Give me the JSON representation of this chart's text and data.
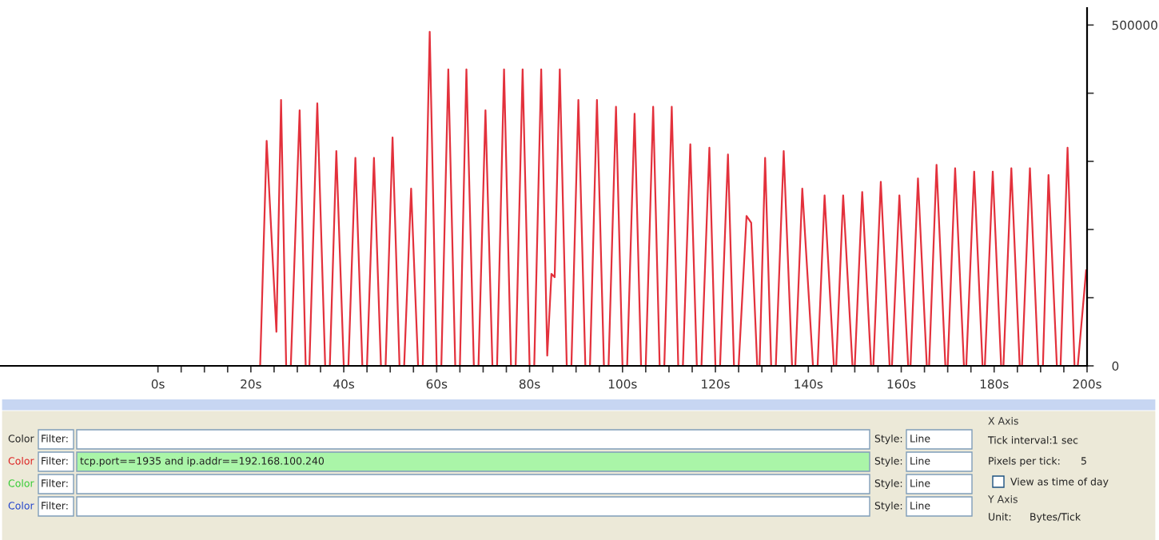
{
  "chart_data": {
    "type": "line",
    "xlim": [
      -34,
      200
    ],
    "ylim": [
      0,
      525000
    ],
    "xticks": [
      {
        "value": 0,
        "label": "0s"
      },
      {
        "value": 5,
        "label": null
      },
      {
        "value": 10,
        "label": null
      },
      {
        "value": 15,
        "label": null
      },
      {
        "value": 20,
        "label": "20s"
      },
      {
        "value": 25,
        "label": null
      },
      {
        "value": 30,
        "label": null
      },
      {
        "value": 35,
        "label": null
      },
      {
        "value": 40,
        "label": "40s"
      },
      {
        "value": 45,
        "label": null
      },
      {
        "value": 50,
        "label": null
      },
      {
        "value": 55,
        "label": null
      },
      {
        "value": 60,
        "label": "60s"
      },
      {
        "value": 65,
        "label": null
      },
      {
        "value": 70,
        "label": null
      },
      {
        "value": 75,
        "label": null
      },
      {
        "value": 80,
        "label": "80s"
      },
      {
        "value": 85,
        "label": null
      },
      {
        "value": 90,
        "label": null
      },
      {
        "value": 95,
        "label": null
      },
      {
        "value": 100,
        "label": "100s"
      },
      {
        "value": 105,
        "label": null
      },
      {
        "value": 110,
        "label": null
      },
      {
        "value": 115,
        "label": null
      },
      {
        "value": 120,
        "label": "120s"
      },
      {
        "value": 125,
        "label": null
      },
      {
        "value": 130,
        "label": null
      },
      {
        "value": 135,
        "label": null
      },
      {
        "value": 140,
        "label": "140s"
      },
      {
        "value": 145,
        "label": null
      },
      {
        "value": 150,
        "label": null
      },
      {
        "value": 155,
        "label": null
      },
      {
        "value": 160,
        "label": "160s"
      },
      {
        "value": 165,
        "label": null
      },
      {
        "value": 170,
        "label": null
      },
      {
        "value": 175,
        "label": null
      },
      {
        "value": 180,
        "label": "180s"
      },
      {
        "value": 185,
        "label": null
      },
      {
        "value": 190,
        "label": null
      },
      {
        "value": 195,
        "label": null
      },
      {
        "value": 200,
        "label": "200s"
      }
    ],
    "yticks": [
      0,
      {
        "value": 100000,
        "label": null
      },
      {
        "value": 200000,
        "label": null
      },
      {
        "value": 300000,
        "label": null
      },
      {
        "value": 400000,
        "label": null
      },
      500000
    ],
    "grid": false,
    "legend": false,
    "marker": "none",
    "line_style": "solid",
    "series": [
      {
        "color": "#e3313c",
        "x": [
          0,
          22,
          23.4,
          25.5,
          26.5,
          27.6,
          28.6,
          30.5,
          31.8,
          32.6,
          34.3,
          36,
          37,
          38.4,
          40,
          41,
          42.5,
          44,
          45,
          46.5,
          48,
          49,
          50.5,
          52,
          53,
          54.5,
          56,
          57,
          58.5,
          60,
          61,
          62.5,
          64,
          65,
          66.4,
          68,
          69,
          70.5,
          72,
          73,
          74.5,
          76,
          77,
          78.5,
          80,
          81,
          82.5,
          83.8,
          84.7,
          85.4,
          86.5,
          88,
          89,
          90.5,
          92,
          93,
          94.5,
          96,
          97,
          98.6,
          100,
          101,
          102.6,
          104,
          105,
          106.6,
          108,
          109,
          110.6,
          112,
          113,
          114.6,
          116,
          117,
          118.7,
          120,
          121,
          122.7,
          124,
          125,
          126.7,
          127.7,
          129,
          129.5,
          130.7,
          132,
          133,
          134.7,
          136.5,
          137.2,
          138.7,
          141,
          142,
          143.5,
          145.5,
          146,
          147.5,
          149.5,
          150,
          151.6,
          153.5,
          154,
          155.6,
          157.5,
          158,
          159.6,
          161.5,
          162,
          163.6,
          165.5,
          166,
          167.6,
          169.5,
          170,
          171.6,
          173.5,
          174,
          175.7,
          177.5,
          178,
          179.7,
          181.5,
          182,
          183.7,
          185.5,
          186,
          187.7,
          189.5,
          190.5,
          191.7,
          193.5,
          194.3,
          195.8,
          197.3,
          198,
          199.8
        ],
        "values": [
          0,
          0,
          330000,
          50000,
          390000,
          0,
          0,
          375000,
          0,
          0,
          385000,
          0,
          0,
          315000,
          0,
          0,
          305000,
          0,
          0,
          305000,
          0,
          0,
          335000,
          0,
          0,
          260000,
          0,
          0,
          490000,
          0,
          0,
          435000,
          0,
          0,
          435000,
          0,
          0,
          375000,
          0,
          0,
          435000,
          0,
          0,
          435000,
          0,
          0,
          435000,
          15000,
          135000,
          130000,
          435000,
          0,
          0,
          390000,
          0,
          0,
          390000,
          0,
          0,
          380000,
          0,
          0,
          370000,
          0,
          0,
          380000,
          0,
          0,
          380000,
          0,
          0,
          325000,
          0,
          0,
          320000,
          0,
          0,
          310000,
          0,
          0,
          220000,
          210000,
          0,
          0,
          305000,
          0,
          0,
          315000,
          0,
          0,
          260000,
          0,
          0,
          250000,
          0,
          0,
          250000,
          0,
          0,
          255000,
          0,
          0,
          270000,
          0,
          0,
          250000,
          0,
          0,
          275000,
          0,
          0,
          295000,
          0,
          0,
          290000,
          0,
          0,
          285000,
          0,
          0,
          285000,
          0,
          0,
          290000,
          0,
          0,
          290000,
          0,
          0,
          280000,
          0,
          0,
          320000,
          0,
          0,
          140000
        ]
      }
    ],
    "annotations": [
      "Color",
      "Filter:",
      "Style:",
      "Line",
      "Color",
      "Filter:",
      "tcp.port==1935 and ip.addr==192.168.100.240",
      "Style:",
      "Line",
      "Color",
      "Filter:",
      "Style:",
      "Line",
      "Color",
      "Filter:",
      "Style:",
      "Line",
      "X Axis",
      "Tick interval:",
      "1 sec",
      "Pixels per tick:",
      "5",
      "View as time of day",
      "Y Axis",
      "Unit:",
      "Bytes/Tick"
    ]
  }
}
